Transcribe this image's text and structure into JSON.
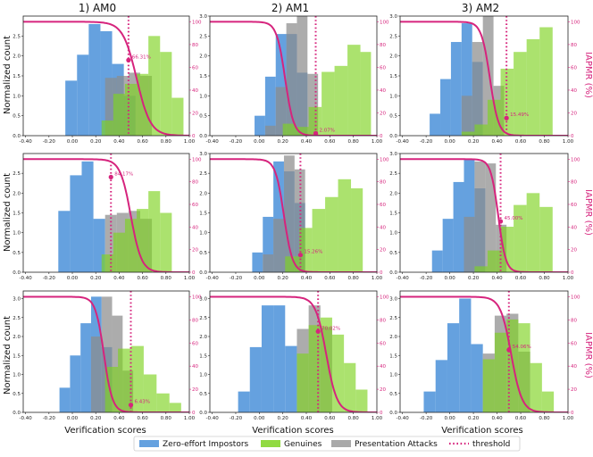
{
  "columns": [
    "1) AM0",
    "2) AM1",
    "3) AM2"
  ],
  "ylabel": "Normalized count",
  "xlabel": "Verification scores",
  "right_ylabel": "IAPMR (%)",
  "legend": [
    {
      "label": "Zero-effort Impostors",
      "color": "#4a90d9",
      "kind": "patch"
    },
    {
      "label": "Genuines",
      "color": "#7ed321",
      "kind": "patch"
    },
    {
      "label": "Presentation Attacks",
      "color": "#8c8c8c",
      "kind": "patch"
    },
    {
      "label": "threshold",
      "color": "#d6247d",
      "kind": "dotted"
    }
  ],
  "colors": {
    "impostor": "#4a90d9",
    "genuine": "#7ed321",
    "attack": "#8c8c8c",
    "iapmr": "#d6247d"
  },
  "chart_data": [
    {
      "type": "bar",
      "row": 1,
      "col": 1,
      "xlim": [
        -0.42,
        1.0
      ],
      "ylim": [
        0,
        3.0
      ],
      "xticks": [
        "-0.40",
        "-0.20",
        "0.00",
        "0.20",
        "0.40",
        "0.60",
        "0.80",
        "1.00"
      ],
      "yticks": [
        "0.0",
        "0.5",
        "1.0",
        "1.5",
        "2.0",
        "2.5"
      ],
      "rticks": [
        "0",
        "20",
        "40",
        "60",
        "80",
        "100"
      ],
      "threshold": 0.48,
      "iapmr_label": "66.31%",
      "iapmr_at_threshold": 66.31,
      "iapmr_mid": 0.55,
      "iapmr_width": 0.13,
      "impostor": {
        "edges": [
          -0.06,
          0.04,
          0.14,
          0.24,
          0.34,
          0.44,
          0.54
        ],
        "values": [
          1.38,
          2.03,
          2.8,
          2.62,
          1.8,
          1.0
        ]
      },
      "attack": {
        "edges": [
          0.28,
          0.38,
          0.48,
          0.58,
          0.68
        ],
        "values": [
          1.45,
          1.5,
          1.58,
          1.5
        ]
      },
      "genuine": {
        "edges": [
          0.25,
          0.35,
          0.45,
          0.55,
          0.65,
          0.75,
          0.85,
          0.95
        ],
        "values": [
          0.38,
          1.05,
          1.3,
          1.55,
          2.5,
          2.1,
          0.95
        ]
      }
    },
    {
      "type": "bar",
      "row": 1,
      "col": 2,
      "xlim": [
        -0.42,
        1.0
      ],
      "ylim": [
        0,
        3.0
      ],
      "xticks": [
        "-0.40",
        "-0.20",
        "0.00",
        "0.20",
        "0.40",
        "0.60",
        "0.80",
        "1.00"
      ],
      "yticks": [
        "0.0",
        "0.5",
        "1.0",
        "1.5",
        "2.0",
        "2.5",
        "3.0"
      ],
      "rticks": [
        "0",
        "20",
        "40",
        "60",
        "80",
        "100"
      ],
      "threshold": 0.48,
      "iapmr_label": "2.07%",
      "iapmr_at_threshold": 2.07,
      "iapmr_mid": 0.22,
      "iapmr_width": 0.08,
      "impostor": {
        "edges": [
          -0.04,
          0.05,
          0.14,
          0.23,
          0.32,
          0.41
        ],
        "values": [
          0.5,
          1.48,
          2.55,
          2.55,
          1.58
        ]
      },
      "attack": {
        "edges": [
          0.05,
          0.14,
          0.23,
          0.32,
          0.41,
          0.5
        ],
        "values": [
          0.25,
          1.22,
          2.82,
          3.05,
          1.55
        ]
      },
      "genuine": {
        "edges": [
          0.2,
          0.31,
          0.42,
          0.53,
          0.64,
          0.75,
          0.86,
          0.95
        ],
        "values": [
          0.3,
          0.22,
          0.72,
          1.6,
          1.75,
          2.28,
          2.1
        ]
      }
    },
    {
      "type": "bar",
      "row": 1,
      "col": 3,
      "xlim": [
        -0.42,
        1.0
      ],
      "ylim": [
        0,
        3.0
      ],
      "xticks": [
        "-0.40",
        "-0.20",
        "0.00",
        "0.20",
        "0.40",
        "0.60",
        "0.80",
        "1.00"
      ],
      "yticks": [
        "0.0",
        "0.5",
        "1.0",
        "1.5",
        "2.0",
        "2.5",
        "3.0"
      ],
      "rticks": [
        "0",
        "20",
        "40",
        "60",
        "80",
        "100"
      ],
      "threshold": 0.48,
      "iapmr_label": "15.49%",
      "iapmr_at_threshold": 15.49,
      "iapmr_mid": 0.34,
      "iapmr_width": 0.08,
      "impostor": {
        "edges": [
          -0.17,
          -0.08,
          0.01,
          0.1,
          0.19,
          0.28
        ],
        "values": [
          0.55,
          1.42,
          2.35,
          2.82,
          1.85
        ]
      },
      "attack": {
        "edges": [
          0.1,
          0.19,
          0.28,
          0.37,
          0.46
        ],
        "values": [
          1.0,
          2.35,
          3.0,
          1.25
        ]
      },
      "genuine": {
        "edges": [
          0.1,
          0.21,
          0.32,
          0.43,
          0.54,
          0.65,
          0.76,
          0.87
        ],
        "values": [
          0.1,
          0.28,
          0.9,
          1.68,
          2.1,
          2.42,
          2.72
        ]
      }
    },
    {
      "type": "bar",
      "row": 2,
      "col": 1,
      "xlim": [
        -0.42,
        1.0
      ],
      "ylim": [
        0,
        3.0
      ],
      "xticks": [
        "-0.40",
        "-0.20",
        "0.00",
        "0.20",
        "0.40",
        "0.60",
        "0.80",
        "1.00"
      ],
      "yticks": [
        "0.0",
        "0.5",
        "1.0",
        "1.5",
        "2.0",
        "2.5"
      ],
      "rticks": [
        "0",
        "20",
        "40",
        "60",
        "80",
        "100"
      ],
      "threshold": 0.33,
      "iapmr_label": "84.17%",
      "iapmr_at_threshold": 84.17,
      "iapmr_mid": 0.5,
      "iapmr_width": 0.1,
      "impostor": {
        "edges": [
          -0.12,
          -0.02,
          0.08,
          0.18,
          0.28
        ],
        "values": [
          1.55,
          2.45,
          2.8,
          1.35
        ]
      },
      "attack": {
        "edges": [
          0.28,
          0.38,
          0.48,
          0.58,
          0.68
        ],
        "values": [
          1.45,
          1.5,
          1.55,
          1.35
        ]
      },
      "genuine": {
        "edges": [
          0.25,
          0.35,
          0.45,
          0.55,
          0.65,
          0.75,
          0.85
        ],
        "values": [
          0.45,
          1.0,
          1.35,
          1.6,
          2.05,
          1.5
        ]
      }
    },
    {
      "type": "bar",
      "row": 2,
      "col": 2,
      "xlim": [
        -0.42,
        1.0
      ],
      "ylim": [
        0,
        3.0
      ],
      "xticks": [
        "-0.40",
        "-0.20",
        "0.00",
        "0.20",
        "0.40",
        "0.60",
        "0.80",
        "1.00"
      ],
      "yticks": [
        "0.0",
        "0.5",
        "1.0",
        "1.5",
        "2.0",
        "2.5",
        "3.0"
      ],
      "rticks": [
        "0",
        "20",
        "40",
        "60",
        "80",
        "100"
      ],
      "threshold": 0.35,
      "iapmr_label": "15.26%",
      "iapmr_at_threshold": 15.26,
      "iapmr_mid": 0.21,
      "iapmr_width": 0.08,
      "impostor": {
        "edges": [
          -0.06,
          0.03,
          0.12,
          0.21,
          0.3,
          0.39
        ],
        "values": [
          0.5,
          1.4,
          2.8,
          2.55,
          1.75
        ]
      },
      "attack": {
        "edges": [
          0.03,
          0.12,
          0.21,
          0.3,
          0.39
        ],
        "values": [
          0.45,
          1.35,
          2.95,
          2.6
        ]
      },
      "genuine": {
        "edges": [
          0.22,
          0.34,
          0.45,
          0.56,
          0.67,
          0.78,
          0.88
        ],
        "values": [
          0.4,
          1.12,
          1.6,
          1.9,
          2.35,
          2.12
        ]
      }
    },
    {
      "type": "bar",
      "row": 2,
      "col": 3,
      "xlim": [
        -0.42,
        1.0
      ],
      "ylim": [
        0,
        3.0
      ],
      "xticks": [
        "-0.40",
        "-0.20",
        "0.00",
        "0.20",
        "0.40",
        "0.60",
        "0.80",
        "1.00"
      ],
      "yticks": [
        "0.0",
        "0.5",
        "1.0",
        "1.5",
        "2.0",
        "2.5",
        "3.0"
      ],
      "rticks": [
        "0",
        "20",
        "40",
        "60",
        "80",
        "100"
      ],
      "threshold": 0.43,
      "iapmr_label": "45.00%",
      "iapmr_at_threshold": 45.0,
      "iapmr_mid": 0.41,
      "iapmr_width": 0.07,
      "impostor": {
        "edges": [
          -0.15,
          -0.06,
          0.03,
          0.12,
          0.21,
          0.3
        ],
        "values": [
          0.55,
          1.35,
          2.28,
          2.85,
          2.12
        ]
      },
      "attack": {
        "edges": [
          0.12,
          0.21,
          0.3,
          0.39,
          0.48
        ],
        "values": [
          1.4,
          2.8,
          2.75,
          1.2
        ]
      },
      "genuine": {
        "edges": [
          0.21,
          0.32,
          0.43,
          0.54,
          0.65,
          0.76,
          0.87
        ],
        "values": [
          0.15,
          0.55,
          1.15,
          1.7,
          2.0,
          1.65
        ]
      }
    },
    {
      "type": "bar",
      "row": 3,
      "col": 1,
      "xlim": [
        -0.42,
        1.0
      ],
      "ylim": [
        0,
        3.2
      ],
      "xticks": [
        "-0.40",
        "-0.20",
        "0.00",
        "0.20",
        "0.40",
        "0.60",
        "0.80",
        "1.00"
      ],
      "yticks": [
        "0.0",
        "0.5",
        "1.0",
        "1.5",
        "2.0",
        "2.5",
        "3.0"
      ],
      "rticks": [
        "0",
        "20",
        "40",
        "60",
        "80",
        "100"
      ],
      "threshold": 0.5,
      "iapmr_label": "6.43%",
      "iapmr_at_threshold": 6.43,
      "iapmr_mid": 0.27,
      "iapmr_width": 0.08,
      "impostor": {
        "edges": [
          -0.11,
          -0.02,
          0.07,
          0.16,
          0.25,
          0.34
        ],
        "values": [
          0.65,
          1.5,
          2.35,
          3.05,
          1.72
        ]
      },
      "attack": {
        "edges": [
          0.16,
          0.25,
          0.34,
          0.43,
          0.52
        ],
        "values": [
          2.0,
          3.05,
          2.55,
          1.1
        ]
      },
      "genuine": {
        "edges": [
          0.28,
          0.39,
          0.5,
          0.61,
          0.72,
          0.83,
          0.93
        ],
        "values": [
          1.2,
          1.68,
          1.75,
          1.0,
          0.5,
          0.25
        ]
      }
    },
    {
      "type": "bar",
      "row": 3,
      "col": 2,
      "xlim": [
        -0.42,
        1.0
      ],
      "ylim": [
        0,
        3.2
      ],
      "xticks": [
        "-0.40",
        "-0.20",
        "0.00",
        "0.20",
        "0.40",
        "0.60",
        "0.80",
        "1.00"
      ],
      "yticks": [
        "0.0",
        "0.5",
        "1.0",
        "1.5",
        "2.0",
        "2.5",
        "3.0"
      ],
      "rticks": [
        "0",
        "20",
        "40",
        "60",
        "80",
        "100"
      ],
      "threshold": 0.5,
      "iapmr_label": "70.02%",
      "iapmr_at_threshold": 70.02,
      "iapmr_mid": 0.57,
      "iapmr_width": 0.1,
      "impostor": {
        "edges": [
          -0.18,
          -0.08,
          0.02,
          0.12,
          0.22,
          0.32
        ],
        "values": [
          0.55,
          1.72,
          2.82,
          2.82,
          1.75
        ]
      },
      "attack": {
        "edges": [
          0.32,
          0.42,
          0.52,
          0.62
        ],
        "values": [
          2.2,
          2.82,
          2.25
        ]
      },
      "genuine": {
        "edges": [
          0.32,
          0.42,
          0.52,
          0.62,
          0.72,
          0.82,
          0.92
        ],
        "values": [
          1.55,
          2.3,
          2.5,
          2.05,
          1.3,
          0.6
        ]
      }
    },
    {
      "type": "bar",
      "row": 3,
      "col": 3,
      "xlim": [
        -0.42,
        1.0
      ],
      "ylim": [
        0,
        3.2
      ],
      "xticks": [
        "-0.40",
        "-0.20",
        "0.00",
        "0.20",
        "0.40",
        "0.60",
        "0.80",
        "1.00"
      ],
      "yticks": [
        "0.0",
        "0.5",
        "1.0",
        "1.5",
        "2.0",
        "2.5",
        "3.0"
      ],
      "rticks": [
        "0",
        "20",
        "40",
        "60",
        "80",
        "100"
      ],
      "threshold": 0.5,
      "iapmr_label": "54.06%",
      "iapmr_at_threshold": 54.06,
      "iapmr_mid": 0.52,
      "iapmr_width": 0.1,
      "impostor": {
        "edges": [
          -0.22,
          -0.12,
          -0.02,
          0.08,
          0.18,
          0.28
        ],
        "values": [
          0.55,
          1.38,
          2.35,
          3.0,
          1.8
        ]
      },
      "attack": {
        "edges": [
          0.28,
          0.38,
          0.48,
          0.58,
          0.68
        ],
        "values": [
          1.55,
          2.55,
          2.6,
          1.6
        ]
      },
      "genuine": {
        "edges": [
          0.28,
          0.38,
          0.48,
          0.58,
          0.68,
          0.78,
          0.88
        ],
        "values": [
          1.4,
          2.1,
          2.45,
          2.35,
          1.3,
          0.55
        ]
      }
    }
  ]
}
